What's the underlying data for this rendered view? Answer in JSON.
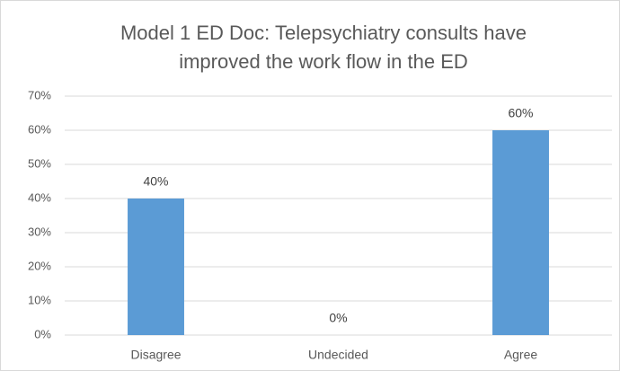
{
  "chart_data": {
    "type": "bar",
    "title": [
      "Model 1 ED Doc:  Telepsychiatry consults have",
      "improved the work flow in the ED"
    ],
    "categories": [
      "Disagree",
      "Undecided",
      "Agree"
    ],
    "values": [
      40,
      0,
      60
    ],
    "value_labels": [
      "40%",
      "0%",
      "60%"
    ],
    "color": "#5b9bd5",
    "ylim": [
      0,
      70
    ],
    "yticks": [
      {
        "value": 0,
        "label": "0%"
      },
      {
        "value": 10,
        "label": "10%"
      },
      {
        "value": 20,
        "label": "20%"
      },
      {
        "value": 30,
        "label": "30%"
      },
      {
        "value": 40,
        "label": "40%"
      },
      {
        "value": 50,
        "label": "50%"
      },
      {
        "value": 60,
        "label": "60%"
      },
      {
        "value": 70,
        "label": "70%"
      }
    ],
    "grid": true
  }
}
